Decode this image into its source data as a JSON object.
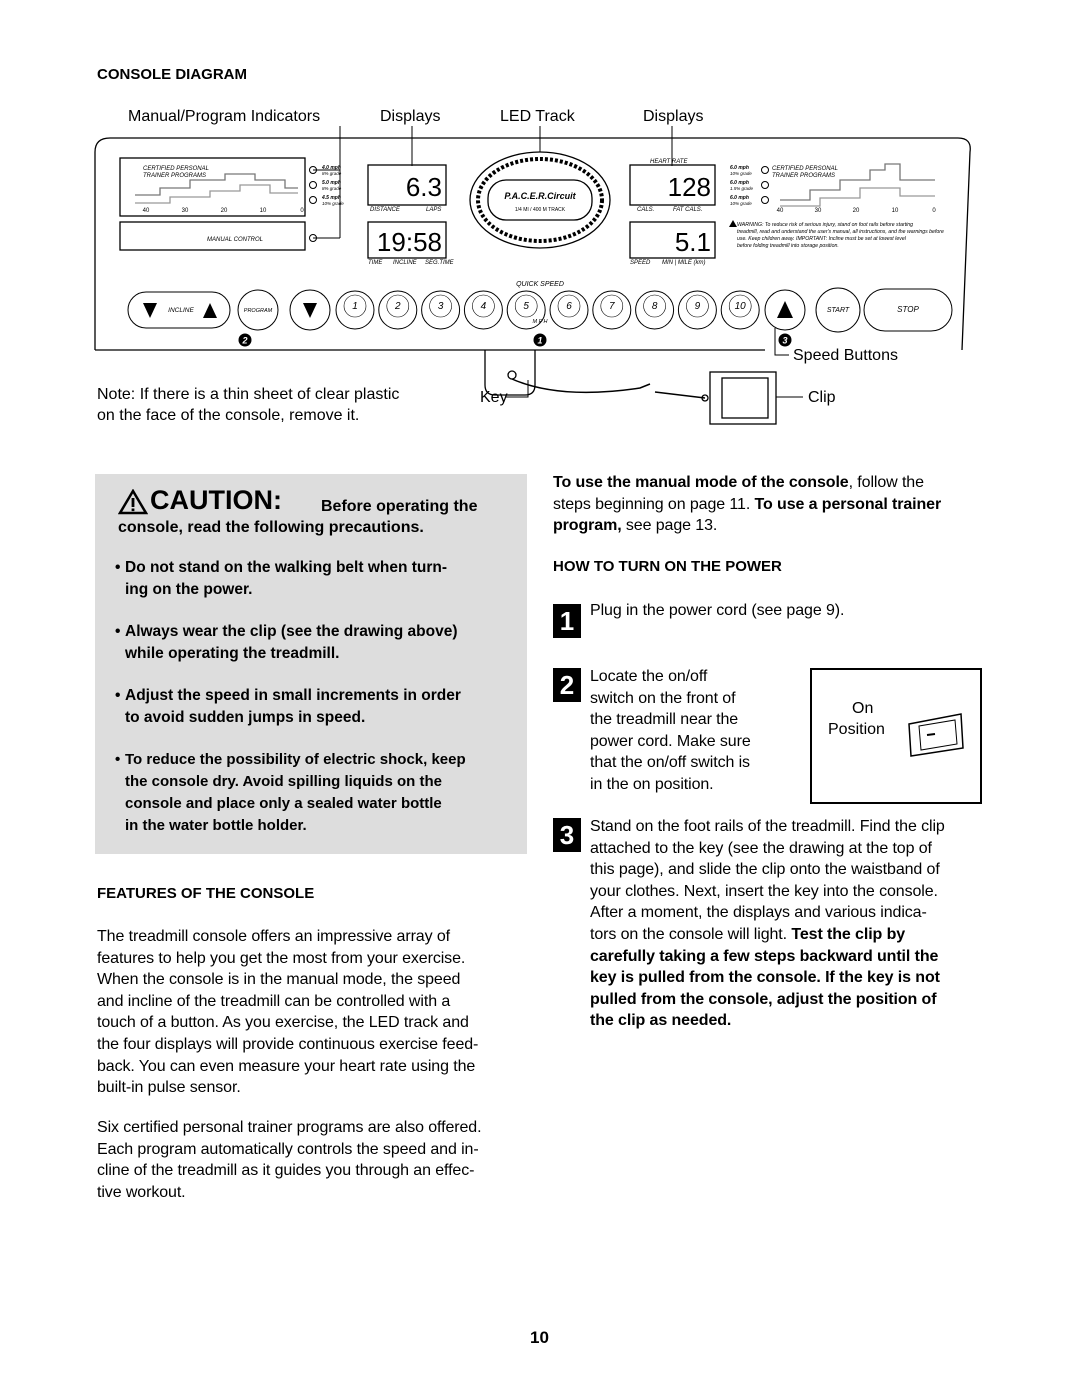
{
  "console_diagram": {
    "heading": "CONSOLE DIAGRAM",
    "callouts": [
      "Manual/Program Indicators",
      "Displays",
      "LED Track",
      "Displays",
      "Speed Buttons",
      "Key",
      "Clip"
    ],
    "note_lines": [
      "Note: If there is a thin sheet of clear plastic",
      "on the face of the console, remove it."
    ],
    "console": {
      "left_panel": {
        "title_lines": [
          "CERTIFIED PERSONAL",
          "TRAINER PROGRAMS"
        ],
        "axis": [
          "40",
          "30",
          "20",
          "10",
          "0"
        ],
        "speeds": [
          "4.0 mph",
          "5.0 mph",
          "4.5 mph"
        ],
        "grades": [
          "8% grade",
          "8% grade",
          "10% grade"
        ],
        "manual": "MANUAL CONTROL"
      },
      "displays": [
        {
          "value": "6.3",
          "labels": [
            "DISTANCE",
            "LAPS"
          ]
        },
        {
          "value": "19:58",
          "labels": [
            "TIME",
            "INCLINE",
            "SEG.TIME"
          ]
        },
        {
          "value": "128",
          "labels": [
            "CALS.",
            "FAT CALS."
          ]
        },
        {
          "value": "5.1",
          "labels": [
            "SPEED",
            "MIN | MILE (km)"
          ]
        }
      ],
      "heart_rate": "HEART RATE",
      "track": {
        "brand": "P.A.C.E.R.Circuit",
        "caption": "1/4 MI  /  400 M TRACK"
      },
      "right_panel": {
        "title_lines": [
          "CERTIFIED PERSONAL",
          "TRAINER PROGRAMS"
        ],
        "axis": [
          "40",
          "30",
          "20",
          "10",
          "0"
        ],
        "speeds": [
          "6.0 mph",
          "6.0 mph",
          "6.0 mph"
        ],
        "grades": [
          "10% grade",
          "1.5% grade",
          "10% grade"
        ],
        "warning_lines": [
          "WARNING: To reduce risk of serious injury, stand on foot rails before starting",
          "treadmill, read and understand the user's manual, all instructions, and the warnings before",
          "use. Keep children away. IMPORTANT: Incline must be set at lowest level",
          "before folding treadmill into storage position."
        ]
      },
      "buttons": {
        "incline": "INCLINE",
        "program": "PROGRAM",
        "quick_speed": "QUICK SPEED",
        "speeds": [
          "1",
          "2",
          "3",
          "4",
          "5",
          "6",
          "7",
          "8",
          "9",
          "10"
        ],
        "mph": "M P H",
        "start": "START",
        "stop": "STOP"
      },
      "markers": [
        "2",
        "1",
        "3"
      ]
    }
  },
  "caution": {
    "title": "CAUTION:",
    "heading_lines": [
      "Before operating the",
      "console, read the following precautions."
    ],
    "bullets": [
      {
        "bold": true,
        "lines": [
          "Do not stand on the walking belt when turn-",
          "ing on the power."
        ]
      },
      {
        "bold": true,
        "lines": [
          "Always wear the clip (see the drawing above)",
          "while operating the treadmill."
        ]
      },
      {
        "bold": true,
        "lines": [
          "Adjust the speed in small increments in order",
          "to avoid sudden jumps in speed."
        ]
      },
      {
        "bold": true,
        "lines": [
          "To reduce the possibility of electric shock, keep",
          "the console dry. Avoid spilling liquids on the",
          "console and place only a sealed water bottle",
          "in the water bottle holder."
        ]
      }
    ]
  },
  "features": {
    "heading": "FEATURES OF THE CONSOLE",
    "paragraphs": [
      {
        "bold": false,
        "lines": [
          "The treadmill console offers an impressive array of",
          "features to help you get the most from your exercise.",
          "When the console is in the manual mode, the speed",
          "and incline of the treadmill can be controlled with a",
          "touch of a button. As you exercise, the LED track and",
          "the four displays will provide continuous exercise feed-",
          "back. You can even measure your heart rate using the",
          "built-in pulse sensor."
        ]
      },
      {
        "bold": false,
        "lines": [
          "Six certified personal trainer programs are also offered.",
          "Each program automatically controls the speed and in-",
          "cline of the treadmill as it guides you through an effec-",
          "tive workout."
        ]
      }
    ]
  },
  "intro": {
    "bold": false,
    "lines": [
      [
        {
          "text": "To use the manual mode of the console",
          "bold": true
        },
        {
          "text": ", follow the",
          "bold": false
        }
      ],
      [
        {
          "text": "steps beginning on page 11. ",
          "bold": false
        },
        {
          "text": "To use a personal trainer",
          "bold": true
        }
      ],
      [
        {
          "text": "program,",
          "bold": true
        },
        {
          "text": " see page 13.",
          "bold": false
        }
      ]
    ]
  },
  "power": {
    "heading": "HOW TO TURN ON THE POWER",
    "steps": [
      {
        "number": "1",
        "bold": false,
        "lines": [
          "Plug in the power cord (see page 9)."
        ]
      },
      {
        "number": "2",
        "bold": false,
        "lines": [
          "Locate the on/off",
          "switch on the front of",
          "the treadmill near the",
          "power cord. Make sure",
          "that the on/off switch is",
          "in the on position."
        ]
      },
      {
        "number": "3",
        "bold": false,
        "lines": [
          "Stand on the foot rails of the treadmill. Find the clip",
          "attached to the key (see the drawing at the top of",
          "this page), and slide the clip onto the waistband of",
          "your clothes. Next, insert the key into the console.",
          "After a moment, the displays and various indica-",
          [
            {
              "text": "tors on the console will light. ",
              "bold": false
            },
            {
              "text": "Test the clip by",
              "bold": true
            }
          ],
          [
            {
              "text": "carefully taking a few steps backward until the",
              "bold": true
            }
          ],
          [
            {
              "text": "key is pulled from the console. If the key is not",
              "bold": true
            }
          ],
          [
            {
              "text": "pulled from the console, adjust the position of",
              "bold": true
            }
          ],
          [
            {
              "text": "the clip as needed.",
              "bold": true
            }
          ]
        ]
      }
    ],
    "figure_labels": [
      "On",
      "Position"
    ]
  },
  "page_number": "10"
}
